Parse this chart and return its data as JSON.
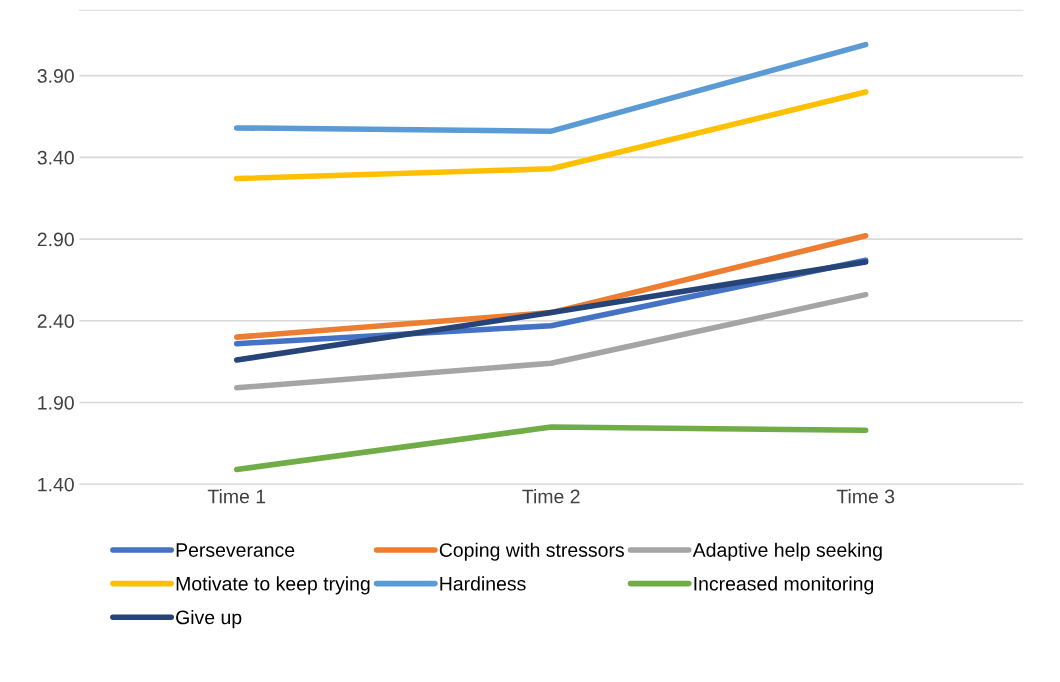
{
  "chart_data": {
    "type": "line",
    "categories": [
      "Time 1",
      "Time 2",
      "Time 3"
    ],
    "series": [
      {
        "name": "Perseverance",
        "color": "#4472c4",
        "values": [
          2.26,
          2.37,
          2.77
        ]
      },
      {
        "name": "Coping with stressors",
        "color": "#ed7d31",
        "values": [
          2.3,
          2.45,
          2.92
        ]
      },
      {
        "name": "Adaptive help seeking",
        "color": "#a5a5a5",
        "values": [
          1.99,
          2.14,
          2.56
        ]
      },
      {
        "name": "Motivate to keep trying",
        "color": "#ffc000",
        "values": [
          3.27,
          3.33,
          3.8
        ]
      },
      {
        "name": "Hardiness",
        "color": "#5b9bd5",
        "values": [
          3.58,
          3.56,
          4.09
        ]
      },
      {
        "name": "Increased monitoring",
        "color": "#70ad47",
        "values": [
          1.49,
          1.75,
          1.73
        ]
      },
      {
        "name": "Give up",
        "color": "#264478",
        "values": [
          2.16,
          2.45,
          2.76
        ]
      }
    ],
    "ylim": [
      1.4,
      4.3
    ],
    "yticks": [
      {
        "value": 1.4,
        "label": "1.40"
      },
      {
        "value": 1.9,
        "label": "1.90"
      },
      {
        "value": 2.4,
        "label": "2.40"
      },
      {
        "value": 2.9,
        "label": "2.90"
      },
      {
        "value": 3.4,
        "label": "3.40"
      },
      {
        "value": 3.9,
        "label": "3.90"
      }
    ],
    "grid": "y",
    "legend": "bottom",
    "marker": "none",
    "line_style": "solid"
  }
}
